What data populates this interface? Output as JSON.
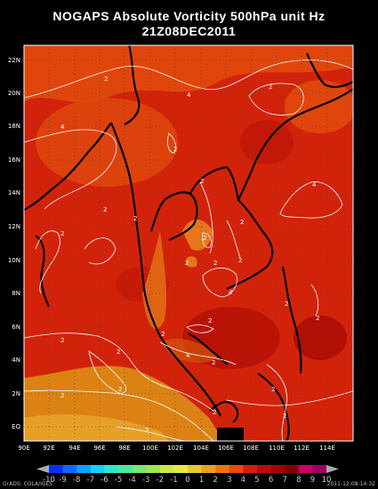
{
  "title": "NOGAPS Absolute Vorticity 500hPa unit Hz",
  "datetime": "21Z08DEC2011",
  "lat_labels": [
    "22N",
    "20N",
    "18N",
    "16N",
    "14N",
    "12N",
    "10N",
    "8N",
    "6N",
    "4N",
    "2N",
    "EQ"
  ],
  "lon_labels": [
    "90E",
    "92E",
    "94E",
    "96E",
    "98E",
    "100E",
    "102E",
    "104E",
    "106E",
    "108E",
    "110E",
    "112E",
    "114E"
  ],
  "contour_labels": [
    "2",
    "4",
    "2",
    "2",
    "4",
    "2",
    "2",
    "4",
    "2",
    "2",
    "2",
    "2",
    "2",
    "2",
    "4",
    "2",
    "4",
    "2",
    "2",
    "2",
    "2",
    "2",
    "2",
    "2",
    "2",
    "2",
    "2",
    "2",
    "2",
    "2"
  ],
  "colorbar": {
    "labels": [
      "-10",
      "-9",
      "-8",
      "-7",
      "-6",
      "-5",
      "-4",
      "-3",
      "-2",
      "-1",
      "0",
      "1",
      "2",
      "3",
      "4",
      "5",
      "6",
      "7",
      "8",
      "9",
      "10"
    ],
    "colors": [
      "#0a2cff",
      "#1466ff",
      "#14a0ff",
      "#14d2ff",
      "#32e6c8",
      "#50e6a0",
      "#78e678",
      "#a0e650",
      "#c8e650",
      "#e6e650",
      "#e6c83c",
      "#e6a028",
      "#e67814",
      "#e64b0a",
      "#d21e0a",
      "#be0a0a",
      "#a00505",
      "#7d0000",
      "#c80064",
      "#960064"
    ]
  },
  "footer_left": "GrADS: COLA/IGES",
  "footer_right": "2011-12-08-14:32"
}
